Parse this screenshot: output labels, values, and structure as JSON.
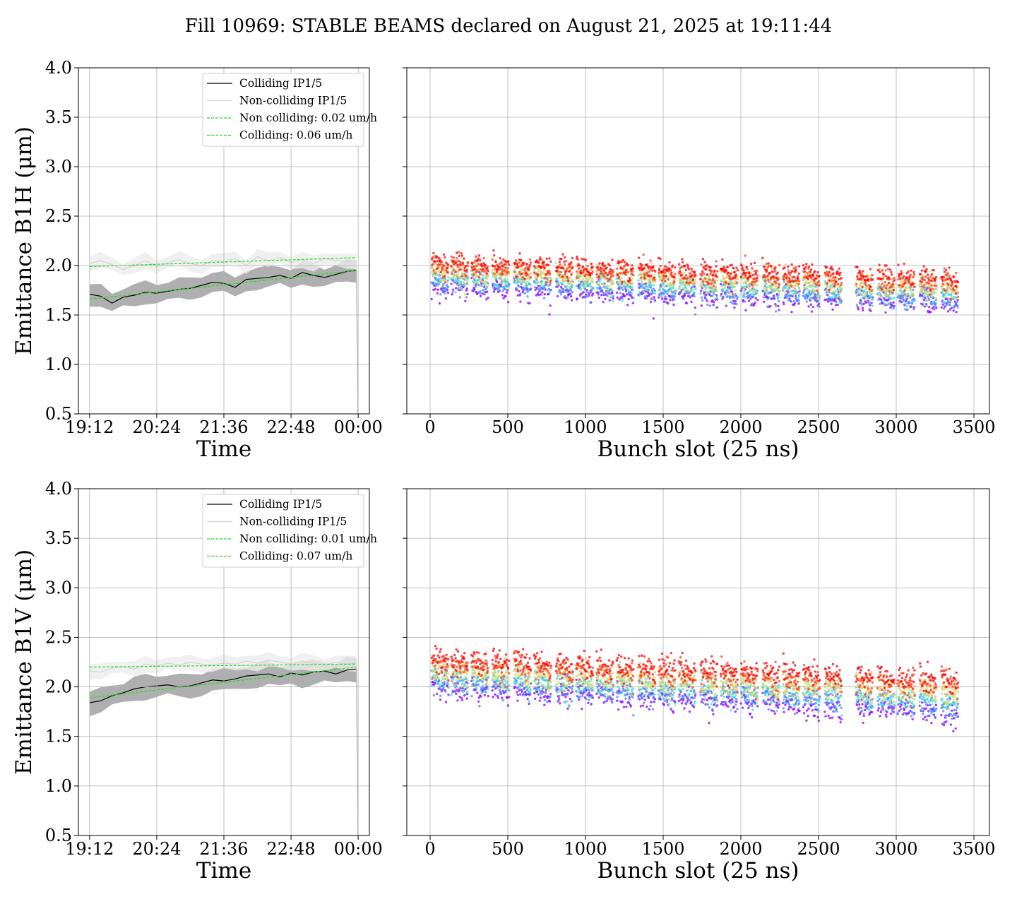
{
  "figure": {
    "title": "Fill 10969: STABLE BEAMS declared on August 21, 2025 at 19:11:44"
  },
  "chart_data": [
    {
      "id": "b1h-time",
      "type": "line",
      "xlabel": "Time",
      "ylabel": "Emittance B1H (μm)",
      "ylim": [
        0.5,
        4.0
      ],
      "yticks": [
        "0.5",
        "1.0",
        "1.5",
        "2.0",
        "2.5",
        "3.0",
        "3.5",
        "4.0"
      ],
      "x_ticks": [
        "19:12",
        "20:24",
        "21:36",
        "22:48",
        "00:00"
      ],
      "x_range_hours": [
        19.0,
        24.2
      ],
      "grid": true,
      "legend_position": "top-right",
      "series": [
        {
          "name": "Colliding IP1/5",
          "color": "#000000",
          "band_color": "#a6a6a6",
          "x": [
            19.2,
            19.4,
            19.6,
            19.8,
            20.0,
            20.2,
            20.4,
            20.6,
            20.8,
            21.0,
            21.2,
            21.4,
            21.6,
            21.8,
            22.0,
            22.2,
            22.4,
            22.6,
            22.8,
            23.0,
            23.2,
            23.4,
            23.6,
            23.8,
            23.97
          ],
          "y": [
            1.71,
            1.69,
            1.62,
            1.68,
            1.7,
            1.73,
            1.72,
            1.74,
            1.76,
            1.77,
            1.8,
            1.83,
            1.82,
            1.78,
            1.86,
            1.87,
            1.88,
            1.9,
            1.87,
            1.93,
            1.9,
            1.88,
            1.91,
            1.94,
            1.95
          ],
          "band": 0.1
        },
        {
          "name": "Non-colliding IP1/5",
          "color": "#d3d3d3",
          "band_color": "#ececec",
          "x": [
            19.2,
            19.4,
            19.6,
            19.8,
            20.0,
            20.2,
            20.4,
            20.6,
            20.8,
            21.0,
            21.2,
            21.4,
            21.6,
            21.8,
            22.0,
            22.2,
            22.4,
            22.6,
            22.8,
            23.0,
            23.2,
            23.4,
            23.6,
            23.8,
            23.97
          ],
          "y": [
            2.02,
            2.05,
            2.01,
            1.96,
            2.0,
            2.05,
            1.99,
            2.03,
            2.06,
            2.02,
            2.0,
            2.05,
            2.04,
            2.07,
            2.0,
            2.09,
            2.05,
            2.08,
            2.03,
            2.06,
            2.02,
            2.07,
            2.05,
            2.04,
            2.05
          ],
          "band": 0.07
        },
        {
          "name": "Non colliding: 0.02 um/h",
          "color": "#22dd22",
          "dashed": true,
          "x": [
            19.2,
            23.97
          ],
          "y": [
            1.99,
            2.08
          ]
        },
        {
          "name": "Colliding: 0.06 um/h",
          "color": "#22dd22",
          "dashed": true,
          "x": [
            19.2,
            23.97
          ],
          "y": [
            1.66,
            1.95
          ]
        }
      ]
    },
    {
      "id": "b1h-bunch",
      "type": "scatter",
      "xlabel": "Bunch slot (25 ns)",
      "ylabel": "",
      "xlim": [
        -150,
        3600
      ],
      "ylim": [
        0.5,
        4.0
      ],
      "xticks": [
        0,
        500,
        1000,
        1500,
        2000,
        2500,
        3000,
        3500
      ],
      "grid": true,
      "colormap": [
        "#8b00ff",
        "#4f7dff",
        "#3fd7e8",
        "#b6e888",
        "#f2c45e",
        "#ff3c1e",
        "#ff0000"
      ],
      "trains": [
        10,
        135,
        265,
        400,
        540,
        670,
        810,
        940,
        1070,
        1200,
        1340,
        1470,
        1600,
        1740,
        1870,
        2000,
        2140,
        2270,
        2400,
        2540,
        2740,
        2880,
        3010,
        3150,
        3290
      ],
      "train_length": 110,
      "top_start": 2.0,
      "top_end": 1.83,
      "bottom_start": 1.75,
      "bottom_end": 1.58,
      "spread": 0.12
    },
    {
      "id": "b1v-time",
      "type": "line",
      "xlabel": "Time",
      "ylabel": "Emittance B1V (μm)",
      "ylim": [
        0.5,
        4.0
      ],
      "yticks": [
        "0.5",
        "1.0",
        "1.5",
        "2.0",
        "2.5",
        "3.0",
        "3.5",
        "4.0"
      ],
      "x_ticks": [
        "19:12",
        "20:24",
        "21:36",
        "22:48",
        "00:00"
      ],
      "x_range_hours": [
        19.0,
        24.2
      ],
      "grid": true,
      "legend_position": "top-right",
      "series": [
        {
          "name": "Colliding IP1/5",
          "color": "#000000",
          "band_color": "#a6a6a6",
          "x": [
            19.2,
            19.4,
            19.6,
            19.8,
            20.0,
            20.2,
            20.4,
            20.6,
            20.8,
            21.0,
            21.2,
            21.4,
            21.6,
            21.8,
            22.0,
            22.2,
            22.4,
            22.6,
            22.8,
            23.0,
            23.2,
            23.4,
            23.6,
            23.8,
            23.97
          ],
          "y": [
            1.84,
            1.86,
            1.91,
            1.94,
            1.98,
            2.0,
            2.01,
            2.02,
            2.0,
            2.01,
            2.04,
            2.07,
            2.06,
            2.08,
            2.11,
            2.12,
            2.13,
            2.1,
            2.14,
            2.12,
            2.15,
            2.16,
            2.13,
            2.17,
            2.18
          ],
          "band": 0.11
        },
        {
          "name": "Non-colliding IP1/5",
          "color": "#d3d3d3",
          "band_color": "#ececec",
          "x": [
            19.2,
            19.4,
            19.6,
            19.8,
            20.0,
            20.2,
            20.4,
            20.6,
            20.8,
            21.0,
            21.2,
            21.4,
            21.6,
            21.8,
            22.0,
            22.2,
            22.4,
            22.6,
            22.8,
            23.0,
            23.2,
            23.4,
            23.6,
            23.8,
            23.97
          ],
          "y": [
            2.16,
            2.15,
            2.19,
            2.2,
            2.18,
            2.23,
            2.21,
            2.24,
            2.22,
            2.25,
            2.23,
            2.22,
            2.24,
            2.23,
            2.26,
            2.24,
            2.27,
            2.25,
            2.23,
            2.26,
            2.24,
            2.22,
            2.25,
            2.23,
            2.24
          ],
          "band": 0.07
        },
        {
          "name": "Non colliding: 0.01 um/h",
          "color": "#22dd22",
          "dashed": true,
          "x": [
            19.2,
            23.97
          ],
          "y": [
            2.2,
            2.23
          ]
        },
        {
          "name": "Colliding: 0.07 um/h",
          "color": "#22dd22",
          "dashed": true,
          "x": [
            19.2,
            23.97
          ],
          "y": [
            1.89,
            2.2
          ]
        }
      ]
    },
    {
      "id": "b1v-bunch",
      "type": "scatter",
      "xlabel": "Bunch slot (25 ns)",
      "ylabel": "",
      "xlim": [
        -150,
        3600
      ],
      "ylim": [
        0.5,
        4.0
      ],
      "xticks": [
        0,
        500,
        1000,
        1500,
        2000,
        2500,
        3000,
        3500
      ],
      "grid": true,
      "colormap": [
        "#8b00ff",
        "#4f7dff",
        "#3fd7e8",
        "#b6e888",
        "#f2c45e",
        "#ff3c1e",
        "#ff0000"
      ],
      "trains": [
        10,
        135,
        265,
        400,
        540,
        670,
        810,
        940,
        1070,
        1200,
        1340,
        1470,
        1600,
        1740,
        1870,
        2000,
        2140,
        2270,
        2400,
        2540,
        2740,
        2880,
        3010,
        3150,
        3290
      ],
      "train_length": 110,
      "top_start": 2.25,
      "top_end": 2.03,
      "bottom_start": 1.95,
      "bottom_end": 1.7,
      "spread": 0.14
    }
  ]
}
